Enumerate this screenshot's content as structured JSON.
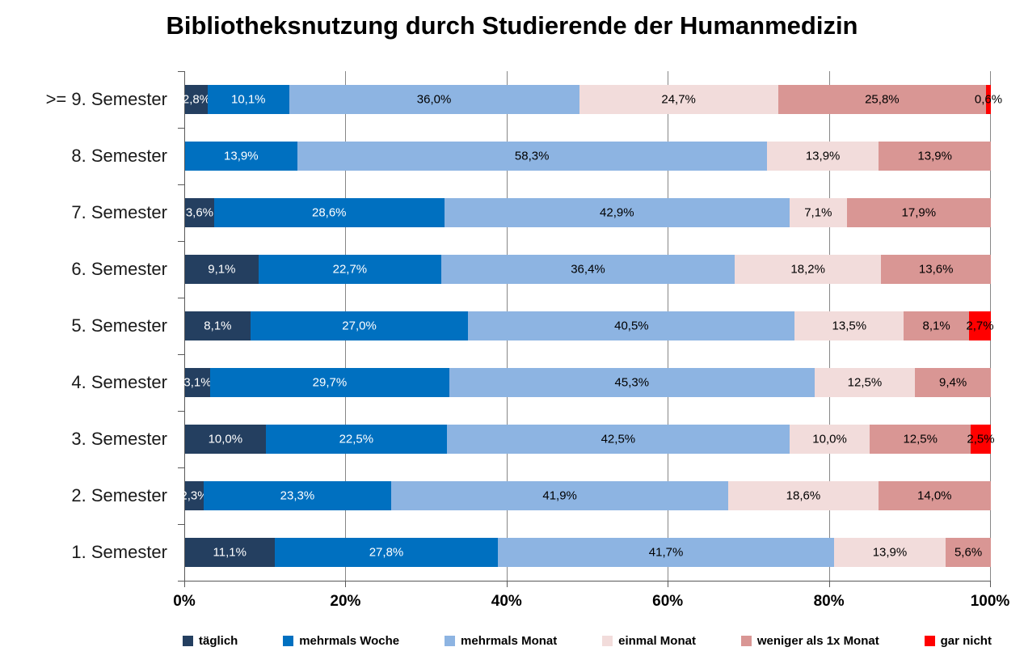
{
  "chart_data": {
    "type": "bar",
    "orientation": "horizontal",
    "stacked": "percent",
    "title": "Bibliotheksnutzung durch Studierende der Humanmedizin",
    "categories": [
      ">= 9. Semester",
      "8. Semester",
      "7. Semester",
      "6. Semester",
      "5. Semester",
      "4. Semester",
      "3. Semester",
      "2. Semester",
      "1. Semester"
    ],
    "x_axis": {
      "tick_values": [
        0,
        20,
        40,
        60,
        80,
        100
      ],
      "tick_labels": [
        "0%",
        "20%",
        "40%",
        "60%",
        "80%",
        "100%"
      ],
      "range": [
        0,
        100
      ]
    },
    "grid": true,
    "legend_position": "bottom",
    "series": [
      {
        "name": "täglich",
        "color": "#243F60",
        "label_color": "#FFFFFF",
        "values": [
          2.8,
          null,
          3.6,
          9.1,
          8.1,
          3.1,
          10.0,
          2.3,
          11.1
        ],
        "labels": [
          "2,8%",
          "",
          "3,6%",
          "9,1%",
          "8,1%",
          "3,1%",
          "10,0%",
          "2,3%",
          "11,1%"
        ]
      },
      {
        "name": "mehrmals Woche",
        "color": "#0070C0",
        "label_color": "#FFFFFF",
        "values": [
          10.1,
          13.9,
          28.6,
          22.7,
          27.0,
          29.7,
          22.5,
          23.3,
          27.8
        ],
        "labels": [
          "10,1%",
          "13,9%",
          "28,6%",
          "22,7%",
          "27,0%",
          "29,7%",
          "22,5%",
          "23,3%",
          "27,8%"
        ]
      },
      {
        "name": "mehrmals Monat",
        "color": "#8DB4E2",
        "label_color": "#000000",
        "values": [
          36.0,
          58.3,
          42.9,
          36.4,
          40.5,
          45.3,
          42.5,
          41.9,
          41.7
        ],
        "labels": [
          "36,0%",
          "58,3%",
          "42,9%",
          "36,4%",
          "40,5%",
          "45,3%",
          "42,5%",
          "41,9%",
          "41,7%"
        ]
      },
      {
        "name": "einmal Monat",
        "color": "#F2DCDB",
        "label_color": "#000000",
        "values": [
          24.7,
          13.9,
          7.1,
          18.2,
          13.5,
          12.5,
          10.0,
          18.6,
          13.9
        ],
        "labels": [
          "24,7%",
          "13,9%",
          "7,1%",
          "18,2%",
          "13,5%",
          "12,5%",
          "10,0%",
          "18,6%",
          "13,9%"
        ]
      },
      {
        "name": "weniger als 1x Monat",
        "color": "#D99694",
        "label_color": "#000000",
        "values": [
          25.8,
          13.9,
          17.9,
          13.6,
          8.1,
          9.4,
          12.5,
          14.0,
          5.6
        ],
        "labels": [
          "25,8%",
          "13,9%",
          "17,9%",
          "13,6%",
          "8,1%",
          "9,4%",
          "12,5%",
          "14,0%",
          "5,6%"
        ]
      },
      {
        "name": "gar nicht",
        "color": "#FF0000",
        "label_color": "#000000",
        "values": [
          0.6,
          null,
          null,
          null,
          2.7,
          null,
          2.5,
          null,
          null
        ],
        "labels": [
          "0,6%",
          "",
          "",
          "",
          "2,7%",
          "",
          "2,5%",
          "",
          ""
        ]
      }
    ]
  },
  "colors": {
    "background": "#FFFFFF",
    "axis_line": "#595959",
    "gridline": "#878787",
    "text": "#000000"
  }
}
